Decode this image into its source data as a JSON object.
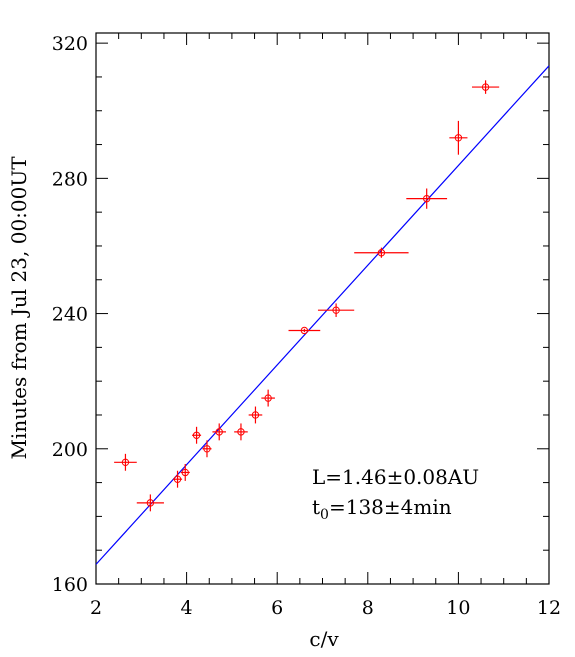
{
  "chart_data": {
    "type": "scatter",
    "title": "",
    "xlabel": "c/v",
    "ylabel": "Minutes from Jul 23, 00:00UT",
    "xlim": [
      2,
      12
    ],
    "ylim": [
      160,
      323
    ],
    "xticks": [
      2,
      4,
      6,
      8,
      10,
      12
    ],
    "yticks": [
      160,
      200,
      240,
      280,
      320
    ],
    "x_minor_step": 0.5,
    "y_minor_step": 10,
    "grid": false,
    "colors": {
      "points": "#ff0000",
      "fit_line": "#0000ff",
      "axes": "#000000"
    },
    "points": [
      {
        "x": 2.65,
        "y": 196,
        "xerr": 0.25,
        "yerr": 2.5
      },
      {
        "x": 3.2,
        "y": 184,
        "xerr": 0.3,
        "yerr": 2.5
      },
      {
        "x": 3.8,
        "y": 191,
        "xerr": 0.1,
        "yerr": 2.5
      },
      {
        "x": 3.97,
        "y": 193,
        "xerr": 0.1,
        "yerr": 2.5
      },
      {
        "x": 4.22,
        "y": 204,
        "xerr": 0.1,
        "yerr": 2.5
      },
      {
        "x": 4.45,
        "y": 200,
        "xerr": 0.1,
        "yerr": 2.5
      },
      {
        "x": 4.72,
        "y": 205,
        "xerr": 0.15,
        "yerr": 2.5
      },
      {
        "x": 5.2,
        "y": 205,
        "xerr": 0.15,
        "yerr": 2.5
      },
      {
        "x": 5.52,
        "y": 210,
        "xerr": 0.15,
        "yerr": 2.5
      },
      {
        "x": 5.8,
        "y": 215,
        "xerr": 0.15,
        "yerr": 2.5
      },
      {
        "x": 6.6,
        "y": 235,
        "xerr": 0.35,
        "yerr": 0.5
      },
      {
        "x": 7.3,
        "y": 241,
        "xerr": 0.4,
        "yerr": 2.0
      },
      {
        "x": 8.3,
        "y": 258,
        "xerr": 0.6,
        "yerr": 1.5
      },
      {
        "x": 9.3,
        "y": 274,
        "xerr": 0.45,
        "yerr": 3.0
      },
      {
        "x": 10.0,
        "y": 292,
        "xerr": 0.2,
        "yerr": 5.0
      },
      {
        "x": 10.6,
        "y": 307,
        "xerr": 0.3,
        "yerr": 2.0
      }
    ],
    "fit_line": {
      "x": [
        2,
        12
      ],
      "y": [
        165.8,
        313.3
      ]
    },
    "annotations": {
      "line1": "L=1.46±0.08AU",
      "line2_prefix": "t",
      "line2_sub": "0",
      "line2_suffix": "=138±4min"
    }
  }
}
